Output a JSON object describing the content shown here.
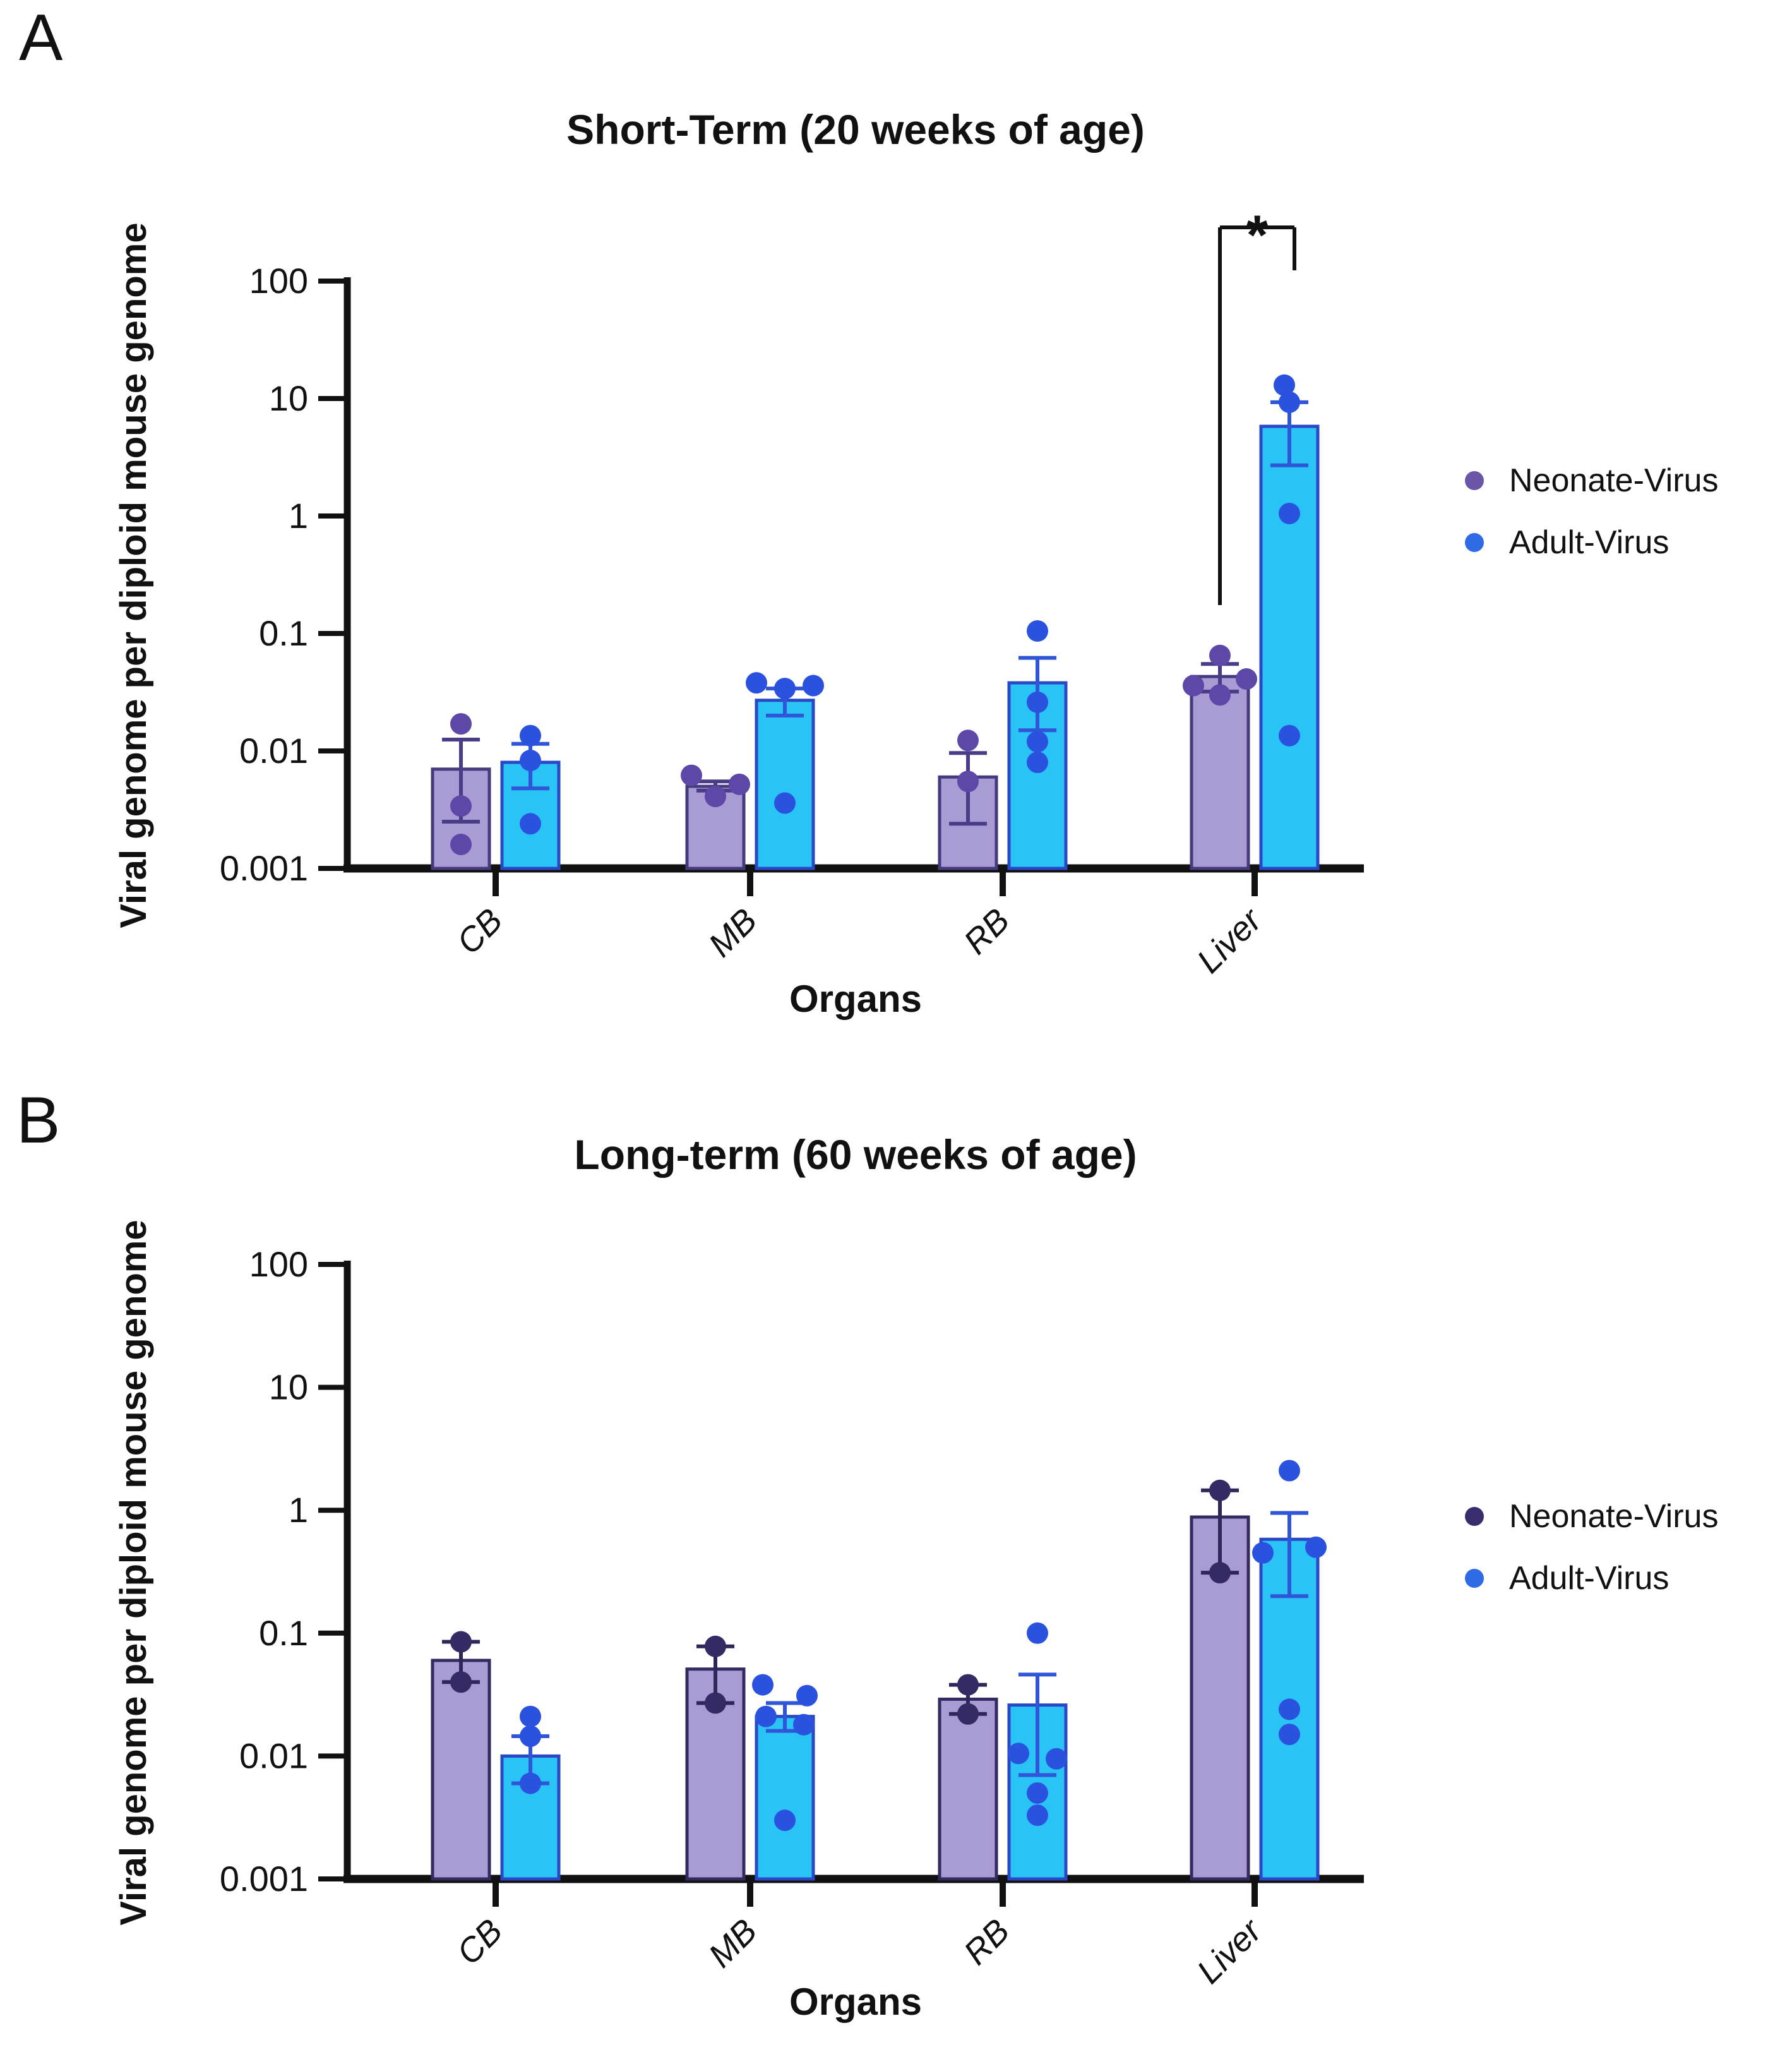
{
  "figure": {
    "panels": [
      {
        "letter": "A",
        "title": "Short-Term (20 weeks of age)",
        "y_axis_label": "Viral genome per diploid mouse genome",
        "x_axis_label": "Organs",
        "legend": [
          {
            "label": "Neonate-Virus",
            "color": "#6a55a8"
          },
          {
            "label": "Adult-Virus",
            "color": "#2e6be5"
          }
        ]
      },
      {
        "letter": "B",
        "title": "Long-term (60 weeks of age)",
        "y_axis_label": "Viral genome per diploid mouse genome",
        "x_axis_label": "Organs",
        "legend": [
          {
            "label": "Neonate-Virus",
            "color": "#3a2d6e"
          },
          {
            "label": "Adult-Virus",
            "color": "#2e6be5"
          }
        ]
      }
    ]
  },
  "chart_data": [
    {
      "type": "bar",
      "title": "Short-Term (20 weeks of age)",
      "xlabel": "Organs",
      "ylabel": "Viral genome per diploid mouse genome",
      "yscale": "log",
      "ylim": [
        0.001,
        100
      ],
      "yticks": [
        "100",
        "10",
        "1",
        "0.1",
        "0.01",
        "0.001"
      ],
      "grid": false,
      "legend_position": "right",
      "categories": [
        "CB",
        "MB",
        "RB",
        "Liver"
      ],
      "series": [
        {
          "name": "Neonate-Virus",
          "bar_fill": "#a99cd5",
          "bar_edge": "#453a7d",
          "point_color": "#5d48a8",
          "error_color": "#4a3c86",
          "means": [
            0.007,
            0.005,
            0.006,
            0.043
          ],
          "sem_low": [
            0.0025,
            0.0046,
            0.0024,
            0.032
          ],
          "sem_high": [
            0.0125,
            0.0055,
            0.0096,
            0.055
          ],
          "points": [
            [
              0.017,
              0.0034,
              0.0016
            ],
            [
              0.0062,
              0.0052,
              0.0041
            ],
            [
              0.0123,
              0.0055
            ],
            [
              0.065,
              0.036,
              0.041,
              0.03
            ]
          ],
          "point_dx": [
            [
              0,
              0,
              0
            ],
            [
              -38,
              38,
              0
            ],
            [
              0,
              0
            ],
            [
              0,
              -42,
              42,
              0
            ]
          ]
        },
        {
          "name": "Adult-Virus",
          "bar_fill": "#29c3f6",
          "bar_edge": "#2a47c5",
          "point_color": "#2b52df",
          "error_color": "#2f55d8",
          "means": [
            0.008,
            0.027,
            0.038,
            5.8
          ],
          "sem_low": [
            0.0048,
            0.02,
            0.015,
            2.7
          ],
          "sem_high": [
            0.0115,
            0.034,
            0.062,
            9.3
          ],
          "points": [
            [
              0.0135,
              0.0083,
              0.0024
            ],
            [
              0.038,
              0.034,
              0.036,
              0.0036
            ],
            [
              0.105,
              0.026,
              0.012,
              0.008
            ],
            [
              13,
              9.3,
              1.05,
              0.0135
            ]
          ],
          "point_dx": [
            [
              0,
              0,
              0
            ],
            [
              -45,
              0,
              45,
              0
            ],
            [
              0,
              0,
              0,
              0
            ],
            [
              -8,
              0,
              0,
              0
            ]
          ]
        }
      ],
      "significance": {
        "category": "Liver",
        "between": [
          "Neonate-Virus",
          "Adult-Virus"
        ],
        "label": "*"
      }
    },
    {
      "type": "bar",
      "title": "Long-term (60 weeks of age)",
      "xlabel": "Organs",
      "ylabel": "Viral genome per diploid mouse genome",
      "yscale": "log",
      "ylim": [
        0.001,
        100
      ],
      "yticks": [
        "100",
        "10",
        "1",
        "0.1",
        "0.01",
        "0.001"
      ],
      "grid": false,
      "legend_position": "right",
      "categories": [
        "CB",
        "MB",
        "RB",
        "Liver"
      ],
      "series": [
        {
          "name": "Neonate-Virus",
          "bar_fill": "#a99cd5",
          "bar_edge": "#332a60",
          "point_color": "#342a64",
          "error_color": "#2f2659",
          "means": [
            0.06,
            0.051,
            0.029,
            0.88
          ],
          "sem_low": [
            0.04,
            0.027,
            0.022,
            0.31
          ],
          "sem_high": [
            0.085,
            0.078,
            0.038,
            1.45
          ],
          "points": [
            [
              0.085,
              0.04
            ],
            [
              0.078,
              0.027
            ],
            [
              0.038,
              0.022
            ],
            [
              1.45,
              0.31
            ]
          ],
          "point_dx": [
            [
              0,
              0
            ],
            [
              0,
              0
            ],
            [
              0,
              0
            ],
            [
              0,
              0
            ]
          ]
        },
        {
          "name": "Adult-Virus",
          "bar_fill": "#29c3f6",
          "bar_edge": "#2a47c5",
          "point_color": "#2b52df",
          "error_color": "#2f55d8",
          "means": [
            0.01,
            0.021,
            0.026,
            0.58
          ],
          "sem_low": [
            0.006,
            0.016,
            0.007,
            0.2
          ],
          "sem_high": [
            0.0145,
            0.027,
            0.046,
            0.95
          ],
          "points": [
            [
              0.021,
              0.0145,
              0.006
            ],
            [
              0.038,
              0.031,
              0.021,
              0.018,
              0.003
            ],
            [
              0.1,
              0.0105,
              0.0095,
              0.005,
              0.0033
            ],
            [
              2.1,
              0.5,
              0.45,
              0.024,
              0.015
            ]
          ],
          "point_dx": [
            [
              0,
              0,
              0
            ],
            [
              -35,
              35,
              -30,
              30,
              0
            ],
            [
              0,
              -30,
              30,
              0,
              0
            ],
            [
              0,
              42,
              -42,
              0,
              0
            ]
          ]
        }
      ],
      "significance": null
    }
  ]
}
